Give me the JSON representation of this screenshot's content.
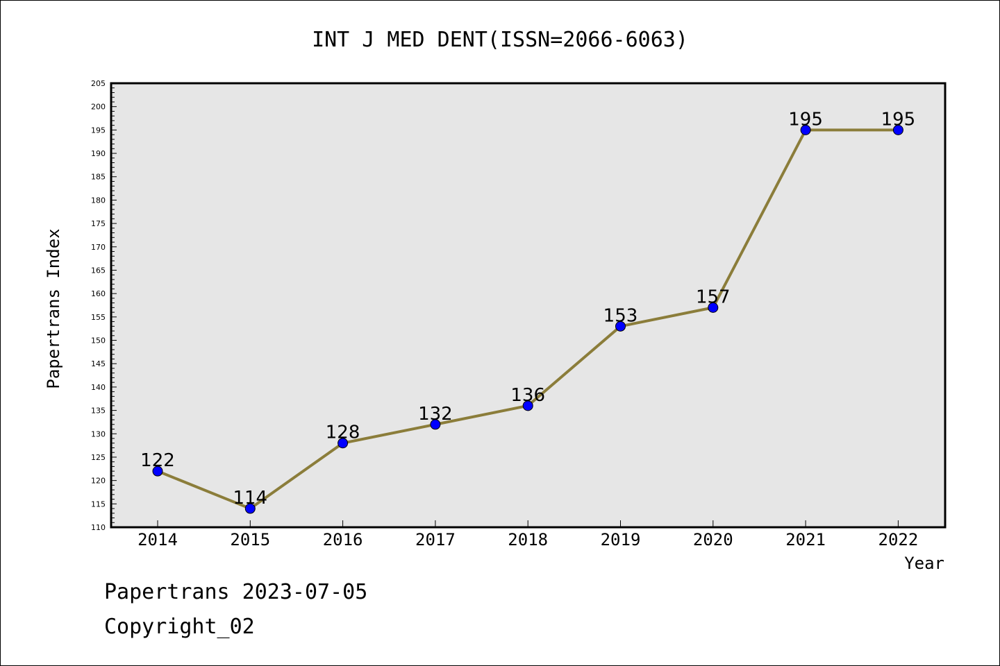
{
  "chart_data": {
    "type": "line",
    "title": "INT J MED DENT(ISSN=2066-6063)",
    "xlabel": "Year",
    "ylabel": "Papertrans Index",
    "categories": [
      "2014",
      "2015",
      "2016",
      "2017",
      "2018",
      "2019",
      "2020",
      "2021",
      "2022"
    ],
    "series": [
      {
        "name": "Papertrans Index",
        "values": [
          122,
          114,
          128,
          132,
          136,
          153,
          157,
          195,
          195
        ]
      }
    ],
    "ylim": [
      110,
      205
    ],
    "ymajor_step": 5,
    "yticks": [
      "110",
      "115",
      "120",
      "125",
      "130",
      "135",
      "140",
      "145",
      "150",
      "155",
      "160",
      "165",
      "170",
      "175",
      "180",
      "185",
      "190",
      "195",
      "200",
      "205"
    ],
    "line_color": "#8b7d3a",
    "marker_color": "#0000ff",
    "plot_background": "#e6e6e6",
    "grid": false
  },
  "footer": {
    "line1": "Papertrans 2023-07-05",
    "line2": "Copyright_02"
  }
}
